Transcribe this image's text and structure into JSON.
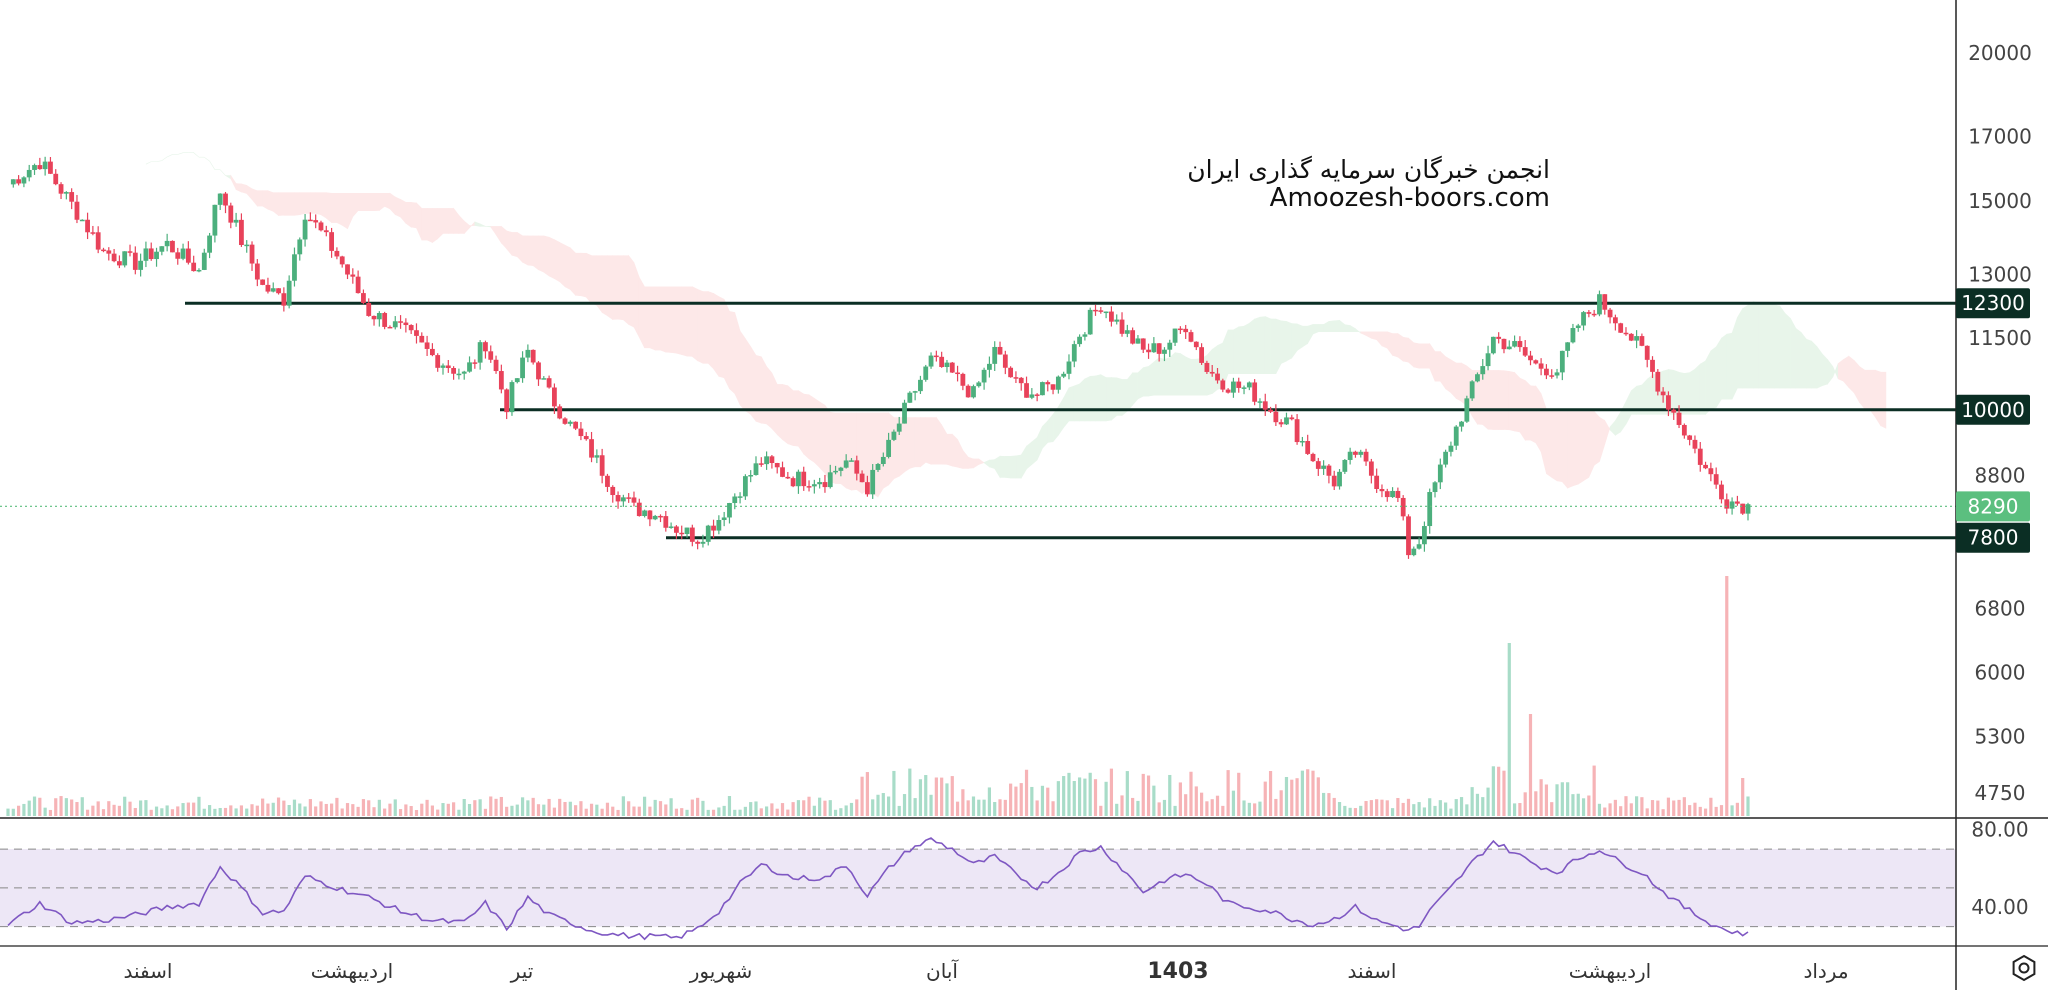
{
  "watermark": {
    "line1": "انجمن خبرگان سرمایه گذاری ایران",
    "line2": "Amoozesh-boors.com"
  },
  "colors": {
    "up": "#26a69a",
    "down": "#ef5350",
    "up_candle": "#4caf7d",
    "down_candle": "#e8425a",
    "level_line": "#0b2e24",
    "level_badge": "#0b2e24",
    "last_price_badge": "#5bbf7f",
    "cloud_bull": "#e8f5ea",
    "cloud_bear": "#fde8e8",
    "rsi_line": "#7e57c2",
    "rsi_band": "#ede7f6"
  },
  "icons": {
    "settings": "settings-icon"
  },
  "chart_data": {
    "type": "candlestick",
    "price_axis_ticks": [
      20000,
      17000,
      15000,
      13000,
      11500,
      8800,
      6800,
      6000,
      5300,
      4750
    ],
    "price_axis_scale": "log",
    "price_range": [
      4600,
      21000
    ],
    "time_axis_labels": [
      "اسفند",
      "اردیبهشت",
      "تیر",
      "شهریور",
      "آبان",
      "1403",
      "اسفند",
      "اردیبهشت",
      "مرداد"
    ],
    "bold_time_label": "1403",
    "horizontal_levels": [
      {
        "label": "12300",
        "value": 12300
      },
      {
        "label": "10000",
        "value": 10000
      },
      {
        "label": "7800",
        "value": 7800
      }
    ],
    "last_price": {
      "label": "8290",
      "value": 8290
    },
    "price_path": [
      [
        0,
        15500
      ],
      [
        6,
        16200
      ],
      [
        12,
        14900
      ],
      [
        18,
        13600
      ],
      [
        24,
        13300
      ],
      [
        30,
        13800
      ],
      [
        36,
        13100
      ],
      [
        40,
        15300
      ],
      [
        44,
        13900
      ],
      [
        48,
        12700
      ],
      [
        52,
        12400
      ],
      [
        56,
        14700
      ],
      [
        62,
        13500
      ],
      [
        68,
        12100
      ],
      [
        74,
        11700
      ],
      [
        80,
        11100
      ],
      [
        86,
        10700
      ],
      [
        90,
        11400
      ],
      [
        94,
        10100
      ],
      [
        98,
        11200
      ],
      [
        102,
        10300
      ],
      [
        106,
        9700
      ],
      [
        110,
        9200
      ],
      [
        114,
        8600
      ],
      [
        118,
        8250
      ],
      [
        122,
        8200
      ],
      [
        126,
        7950
      ],
      [
        130,
        7800
      ],
      [
        134,
        8100
      ],
      [
        138,
        8600
      ],
      [
        142,
        9050
      ],
      [
        148,
        8750
      ],
      [
        154,
        8750
      ],
      [
        158,
        9050
      ],
      [
        162,
        8600
      ],
      [
        166,
        9300
      ],
      [
        170,
        10200
      ],
      [
        174,
        11000
      ],
      [
        178,
        10700
      ],
      [
        182,
        10300
      ],
      [
        186,
        11200
      ],
      [
        190,
        10500
      ],
      [
        194,
        10300
      ],
      [
        198,
        10600
      ],
      [
        202,
        11600
      ],
      [
        206,
        12300
      ],
      [
        210,
        11700
      ],
      [
        214,
        11200
      ],
      [
        218,
        11300
      ],
      [
        222,
        11800
      ],
      [
        226,
        10800
      ],
      [
        230,
        10500
      ],
      [
        234,
        10400
      ],
      [
        238,
        10000
      ],
      [
        242,
        9700
      ],
      [
        246,
        9100
      ],
      [
        250,
        8700
      ],
      [
        254,
        9200
      ],
      [
        258,
        8700
      ],
      [
        262,
        8400
      ],
      [
        264,
        7600
      ],
      [
        266,
        7750
      ],
      [
        268,
        8400
      ],
      [
        272,
        9400
      ],
      [
        276,
        10400
      ],
      [
        280,
        11500
      ],
      [
        284,
        11300
      ],
      [
        288,
        10900
      ],
      [
        292,
        10800
      ],
      [
        296,
        11800
      ],
      [
        300,
        12350
      ],
      [
        304,
        11800
      ],
      [
        308,
        11200
      ],
      [
        312,
        10300
      ],
      [
        316,
        9600
      ],
      [
        320,
        8900
      ],
      [
        324,
        8400
      ],
      [
        328,
        8290
      ]
    ],
    "volume_ticks": [],
    "rsi": {
      "ticks": [
        80.0,
        40.0
      ],
      "tick_labels": [
        "80.00",
        "40.00"
      ],
      "upper": 70,
      "middle": 50,
      "lower": 30,
      "range": [
        20,
        85
      ],
      "values": [
        [
          0,
          31
        ],
        [
          6,
          42
        ],
        [
          12,
          32
        ],
        [
          18,
          33
        ],
        [
          24,
          36
        ],
        [
          30,
          40
        ],
        [
          36,
          42
        ],
        [
          40,
          61
        ],
        [
          44,
          50
        ],
        [
          48,
          37
        ],
        [
          52,
          38
        ],
        [
          56,
          56
        ],
        [
          62,
          50
        ],
        [
          68,
          45
        ],
        [
          74,
          38
        ],
        [
          80,
          33
        ],
        [
          86,
          32
        ],
        [
          90,
          42
        ],
        [
          94,
          29
        ],
        [
          98,
          45
        ],
        [
          102,
          36
        ],
        [
          106,
          32
        ],
        [
          110,
          28
        ],
        [
          114,
          26
        ],
        [
          118,
          25
        ],
        [
          122,
          25
        ],
        [
          126,
          24
        ],
        [
          130,
          29
        ],
        [
          134,
          38
        ],
        [
          138,
          52
        ],
        [
          142,
          62
        ],
        [
          148,
          55
        ],
        [
          154,
          55
        ],
        [
          158,
          62
        ],
        [
          162,
          46
        ],
        [
          166,
          60
        ],
        [
          170,
          70
        ],
        [
          174,
          75
        ],
        [
          178,
          70
        ],
        [
          182,
          62
        ],
        [
          186,
          66
        ],
        [
          190,
          57
        ],
        [
          194,
          50
        ],
        [
          198,
          58
        ],
        [
          202,
          68
        ],
        [
          206,
          71
        ],
        [
          210,
          60
        ],
        [
          214,
          48
        ],
        [
          218,
          54
        ],
        [
          222,
          57
        ],
        [
          226,
          52
        ],
        [
          230,
          42
        ],
        [
          234,
          40
        ],
        [
          238,
          38
        ],
        [
          242,
          34
        ],
        [
          246,
          31
        ],
        [
          250,
          34
        ],
        [
          254,
          40
        ],
        [
          258,
          33
        ],
        [
          262,
          30
        ],
        [
          264,
          28
        ],
        [
          266,
          30
        ],
        [
          268,
          38
        ],
        [
          272,
          50
        ],
        [
          276,
          63
        ],
        [
          280,
          74
        ],
        [
          284,
          68
        ],
        [
          288,
          62
        ],
        [
          292,
          58
        ],
        [
          296,
          65
        ],
        [
          300,
          70
        ],
        [
          304,
          63
        ],
        [
          308,
          58
        ],
        [
          312,
          48
        ],
        [
          316,
          40
        ],
        [
          320,
          33
        ],
        [
          324,
          28
        ],
        [
          328,
          26
        ]
      ]
    }
  }
}
